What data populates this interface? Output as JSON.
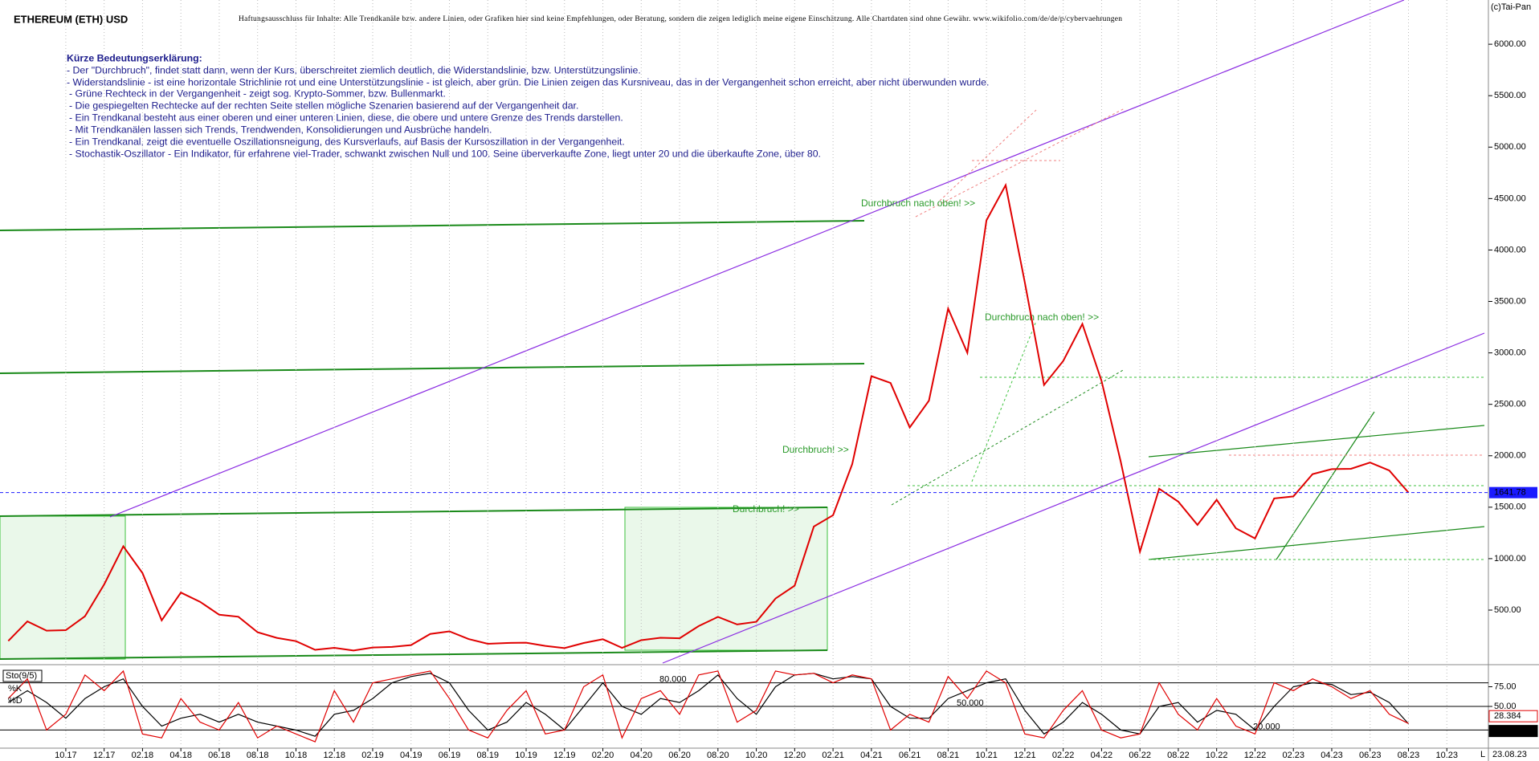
{
  "chart_data": [
    {
      "type": "line",
      "title": "ETHEREUM (ETH) USD",
      "subtitle": "Haftungsausschluss für Inhalte: Alle Trendkanäle bzw. andere Linien, oder Grafiken hier sind keine Empfehlungen, oder Beratung, sondern die zeigen lediglich meine eigene Einschätzung. Alle Chartdaten sind ohne Gewähr.  www.wikifolio.com/de/de/p/cybervaehrungen",
      "source": "(c)Tai-Pan",
      "date": "23.08.23",
      "scale_label": "L",
      "notes": [
        "Kürze Bedeutungserklärung:",
        "- Der \"Durchbruch\", findet statt dann, wenn der Kurs, überschreitet ziemlich deutlich, die Widerstandslinie, bzw. Unterstützungslinie.",
        "- Widerstandslinie - ist eine horizontale Strichlinie rot und eine Unterstützungslinie - ist gleich, aber grün. Die Linien zeigen das Kursniveau, das in der Vergangenheit schon erreicht, aber nicht überwunden wurde.",
        "- Grüne Rechteck in der Vergangenheit - zeigt sog. Krypto-Sommer, bzw. Bullenmarkt.",
        "- Die gespiegelten Rechtecke auf der rechten Seite stellen mögliche Szenarien basierend auf der Vergangenheit dar.",
        "- Ein Trendkanal besteht aus einer oberen und einer unteren Linien, diese, die obere und untere Grenze des Trends darstellen.",
        "- Mit Trendkanälen lassen sich Trends, Trendwenden, Konsolidierungen und Ausbrüche handeln.",
        "- Ein Trendkanal, zeigt die eventuelle Oszillationsneigung, des Kursverlaufs, auf Basis der Kursoszillation in der Vergangenheit.",
        "- Stochastik-Oszillator - Ein Indikator, für erfahrene viel-Trader, schwankt zwischen Null und 100. Seine überverkaufte Zone, liegt unter 20 und die überkaufte Zone, über 80."
      ],
      "annotations": [
        "Durchbruch nach oben! >>",
        "Durchbruch nach oben! >>",
        "Durchbruch! >>",
        "Durchbruch! >>"
      ],
      "categories": [
        null,
        null,
        null,
        "10.17",
        null,
        "12.17",
        null,
        "02.18",
        null,
        "04.18",
        null,
        "06.18",
        null,
        "08.18",
        null,
        "10.18",
        null,
        "12.18",
        null,
        "02.19",
        null,
        "04.19",
        null,
        "06.19",
        null,
        "08.19",
        null,
        "10.19",
        null,
        "12.19",
        null,
        "02.20",
        null,
        "04.20",
        null,
        "06.20",
        null,
        "08.20",
        null,
        "10.20",
        null,
        "12.20",
        null,
        "02.21",
        null,
        "04.21",
        null,
        "06.21",
        null,
        "08.21",
        null,
        "10.21",
        null,
        "12.21",
        null,
        "02.22",
        null,
        "04.22",
        null,
        "06.22",
        null,
        "08.22",
        null,
        "10.22",
        null,
        "12.22",
        null,
        "02.23",
        null,
        "04.23",
        null,
        "06.23",
        null,
        "08.23",
        null,
        "10.23"
      ],
      "values": [
        200,
        390,
        300,
        305,
        440,
        750,
        1120,
        860,
        400,
        670,
        580,
        455,
        435,
        285,
        230,
        198,
        114,
        133,
        107,
        136,
        142,
        160,
        268,
        293,
        218,
        172,
        180,
        183,
        152,
        130,
        180,
        217,
        133,
        207,
        231,
        226,
        345,
        434,
        360,
        386,
        612,
        737,
        1312,
        1422,
        1919,
        2774,
        2707,
        2275,
        2536,
        3431,
        3001,
        4288,
        4631,
        3683,
        2688,
        2922,
        3282,
        2727,
        1942,
        1067,
        1680,
        1554,
        1328,
        1572,
        1295,
        1196,
        1585,
        1605,
        1822,
        1870,
        1873,
        1934,
        1857,
        1642,
        null,
        null
      ],
      "color": "#e00000",
      "last_price": 1641.78,
      "last_price_color": "#1a1aff",
      "ylim": [
        -15,
        6430
      ],
      "yticks": [
        {
          "value": 500,
          "label": "500.00"
        },
        {
          "value": 1000,
          "label": "1000.00"
        },
        {
          "value": 1500,
          "label": "1500.00"
        },
        {
          "value": 2000,
          "label": "2000.00"
        },
        {
          "value": 2500,
          "label": "2500.00"
        },
        {
          "value": 3000,
          "label": "3000.00"
        },
        {
          "value": 3500,
          "label": "3500.00"
        },
        {
          "value": 4000,
          "label": "4000.00"
        },
        {
          "value": 4500,
          "label": "4500.00"
        },
        {
          "value": 5000,
          "label": "5000.00"
        },
        {
          "value": 5500,
          "label": "5500.00"
        },
        {
          "value": 6000,
          "label": "6000.00"
        }
      ],
      "grid": true
    },
    {
      "type": "line",
      "title": "Sto(9/5)",
      "series": [
        {
          "name": "%K",
          "color": "#000000",
          "values": [
            55,
            70,
            55,
            35,
            60,
            75,
            85,
            50,
            25,
            35,
            40,
            30,
            40,
            30,
            25,
            20,
            12,
            40,
            45,
            60,
            80,
            88,
            92,
            80,
            45,
            20,
            30,
            55,
            40,
            20,
            50,
            80,
            50,
            40,
            60,
            55,
            70,
            90,
            60,
            40,
            75,
            90,
            92,
            85,
            88,
            85,
            50,
            35,
            35,
            60,
            70,
            80,
            85,
            45,
            15,
            30,
            55,
            40,
            20,
            15,
            50,
            55,
            30,
            45,
            40,
            20,
            50,
            75,
            80,
            78,
            65,
            68,
            55,
            27.929,
            null,
            null
          ]
        },
        {
          "name": "%D",
          "color": "#e00000",
          "values": [
            60,
            85,
            20,
            40,
            90,
            70,
            95,
            15,
            10,
            60,
            30,
            20,
            55,
            10,
            25,
            15,
            5,
            70,
            30,
            80,
            85,
            90,
            95,
            60,
            20,
            10,
            45,
            70,
            15,
            20,
            75,
            90,
            10,
            60,
            70,
            40,
            90,
            95,
            30,
            45,
            95,
            90,
            92,
            80,
            90,
            85,
            20,
            40,
            30,
            88,
            60,
            95,
            80,
            15,
            10,
            45,
            70,
            20,
            10,
            15,
            80,
            40,
            20,
            60,
            25,
            15,
            80,
            70,
            85,
            75,
            60,
            70,
            40,
            28.384,
            null,
            null
          ]
        }
      ],
      "levels": [
        {
          "value": 80,
          "label": "80.000"
        },
        {
          "value": 50,
          "label": "50.000"
        },
        {
          "value": 20,
          "label": "20.000"
        }
      ],
      "ylim": [
        0,
        100
      ],
      "yticks": [
        {
          "value": 75,
          "label": "75.00"
        },
        {
          "value": 50,
          "label": "50.00"
        }
      ]
    }
  ]
}
